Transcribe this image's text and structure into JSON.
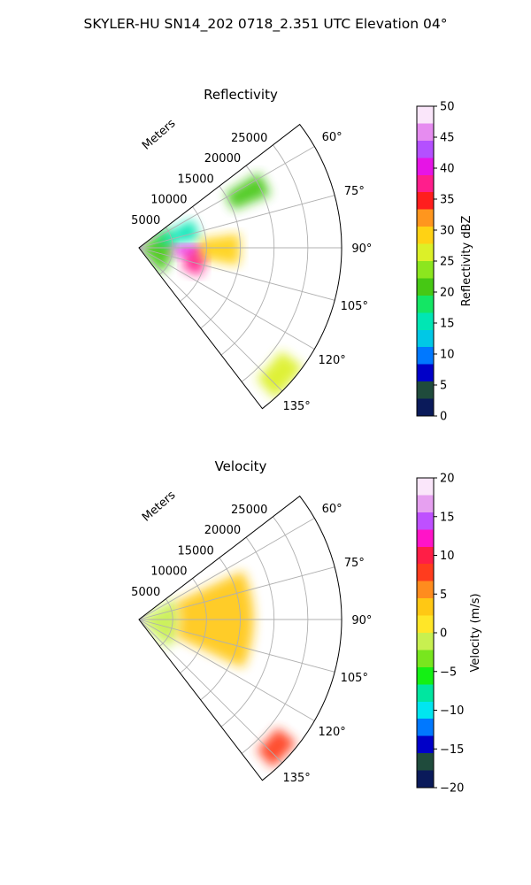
{
  "suptitle": "SKYLER-HU  SN14_202  0718_2.351 UTC Elevation 04°",
  "chart_data": [
    {
      "type": "heatmap",
      "projection": "polar-sector",
      "title": "Reflectivity",
      "radial_label": "Meters",
      "radial_ticks": [
        5000,
        10000,
        15000,
        20000,
        25000
      ],
      "radial_tick_labels": [
        "5000",
        "10000",
        "15000",
        "20000",
        "25000"
      ],
      "rmax": 30000,
      "angle_range_deg": [
        52.5,
        142.5
      ],
      "angle_ticks_deg": [
        60,
        75,
        90,
        105,
        120,
        135
      ],
      "angle_tick_labels": [
        "60°",
        "75°",
        "90°",
        "105°",
        "120°",
        "135°"
      ],
      "grid": true,
      "colorbar": {
        "label": "Reflectivity dBZ",
        "min": 0,
        "max": 50,
        "ticks": [
          0,
          5,
          10,
          15,
          20,
          25,
          30,
          35,
          40,
          45,
          50
        ],
        "tick_labels": [
          "0",
          "5",
          "10",
          "15",
          "20",
          "25",
          "30",
          "35",
          "40",
          "45",
          "50"
        ],
        "stops": [
          "#0a1a5a",
          "#1f4b3c",
          "#0000c8",
          "#0078ff",
          "#00c8e6",
          "#00e6b4",
          "#14e664",
          "#46c814",
          "#8ce61e",
          "#dcf028",
          "#ffd214",
          "#ff961e",
          "#ff1e1e",
          "#ff1e8c",
          "#e614e6",
          "#b450ff",
          "#e68cf0",
          "#fae6fa"
        ]
      },
      "regions": [
        {
          "r": [
            0,
            5000
          ],
          "a": [
            55,
            140
          ],
          "value": 20
        },
        {
          "r": [
            3000,
            9000
          ],
          "a": [
            62,
            82
          ],
          "value": 15
        },
        {
          "r": [
            5000,
            10000
          ],
          "a": [
            88,
            100
          ],
          "value": 40
        },
        {
          "r": [
            7000,
            10000
          ],
          "a": [
            95,
            115
          ],
          "value": 38
        },
        {
          "r": [
            9000,
            15000
          ],
          "a": [
            82,
            100
          ],
          "value": 30
        },
        {
          "r": [
            15000,
            21000
          ],
          "a": [
            58,
            68
          ],
          "value": 20
        },
        {
          "r": [
            26000,
            30000
          ],
          "a": [
            126,
            138
          ],
          "value": 25
        }
      ]
    },
    {
      "type": "heatmap",
      "projection": "polar-sector",
      "title": "Velocity",
      "radial_label": "Meters",
      "radial_ticks": [
        5000,
        10000,
        15000,
        20000,
        25000
      ],
      "radial_tick_labels": [
        "5000",
        "10000",
        "15000",
        "20000",
        "25000"
      ],
      "rmax": 30000,
      "angle_range_deg": [
        52.5,
        142.5
      ],
      "angle_ticks_deg": [
        60,
        75,
        90,
        105,
        120,
        135
      ],
      "angle_tick_labels": [
        "60°",
        "75°",
        "90°",
        "105°",
        "120°",
        "135°"
      ],
      "grid": true,
      "colorbar": {
        "label": "Velocity (m/s)",
        "min": -20,
        "max": 20,
        "ticks": [
          -20,
          -15,
          -10,
          -5,
          0,
          5,
          10,
          15,
          20
        ],
        "tick_labels": [
          "−20",
          "−15",
          "−10",
          "−5",
          "0",
          "5",
          "10",
          "15",
          "20"
        ],
        "stops": [
          "#0a1a5a",
          "#1f4b3c",
          "#0000c8",
          "#0078ff",
          "#00e6f0",
          "#00e6a0",
          "#14f014",
          "#78e61e",
          "#c8f050",
          "#ffe628",
          "#ffc814",
          "#ff8c1e",
          "#ff3c1e",
          "#ff1e46",
          "#ff14c8",
          "#be50ff",
          "#e6a0f0",
          "#fae6fa"
        ]
      },
      "regions": [
        {
          "r": [
            0,
            6000
          ],
          "a": [
            60,
            135
          ],
          "value": -2
        },
        {
          "r": [
            6000,
            17000
          ],
          "a": [
            65,
            115
          ],
          "value": 3
        },
        {
          "r": [
            26000,
            29500
          ],
          "a": [
            128,
            138
          ],
          "value": 9
        }
      ]
    }
  ]
}
